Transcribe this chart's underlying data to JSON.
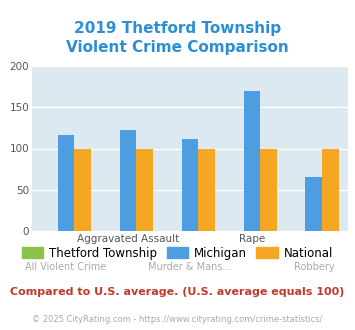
{
  "title": "2019 Thetford Township\nViolent Crime Comparison",
  "categories": [
    "All Violent Crime",
    "Aggravated\nAssault",
    "Murder & Mans...",
    "Rape",
    "Robbery"
  ],
  "tick_top": [
    "",
    "Aggravated Assault",
    "",
    "Rape",
    ""
  ],
  "tick_bot": [
    "All Violent Crime",
    "",
    "Murder & Mans...",
    "",
    "Robbery"
  ],
  "series": {
    "Thetford Township": [
      0,
      0,
      0,
      0,
      0
    ],
    "Michigan": [
      116,
      122,
      112,
      170,
      65
    ],
    "National": [
      100,
      100,
      100,
      100,
      100
    ]
  },
  "colors": {
    "Thetford Township": "#8bc34a",
    "Michigan": "#4d9de0",
    "National": "#f5a623"
  },
  "ylim": [
    0,
    200
  ],
  "yticks": [
    0,
    50,
    100,
    150,
    200
  ],
  "background_color": "#dce9f0",
  "title_color": "#2b8fd6",
  "title_fontsize": 11,
  "axis_label_fontsize": 7.5,
  "legend_fontsize": 8.5,
  "footer_text": "Compared to U.S. average. (U.S. average equals 100)",
  "copyright_text": "© 2025 CityRating.com - https://www.cityrating.com/crime-statistics/",
  "footer_color": "#c0392b",
  "copyright_color": "#aaaaaa",
  "bar_width": 0.27,
  "grid_color": "#ffffff"
}
